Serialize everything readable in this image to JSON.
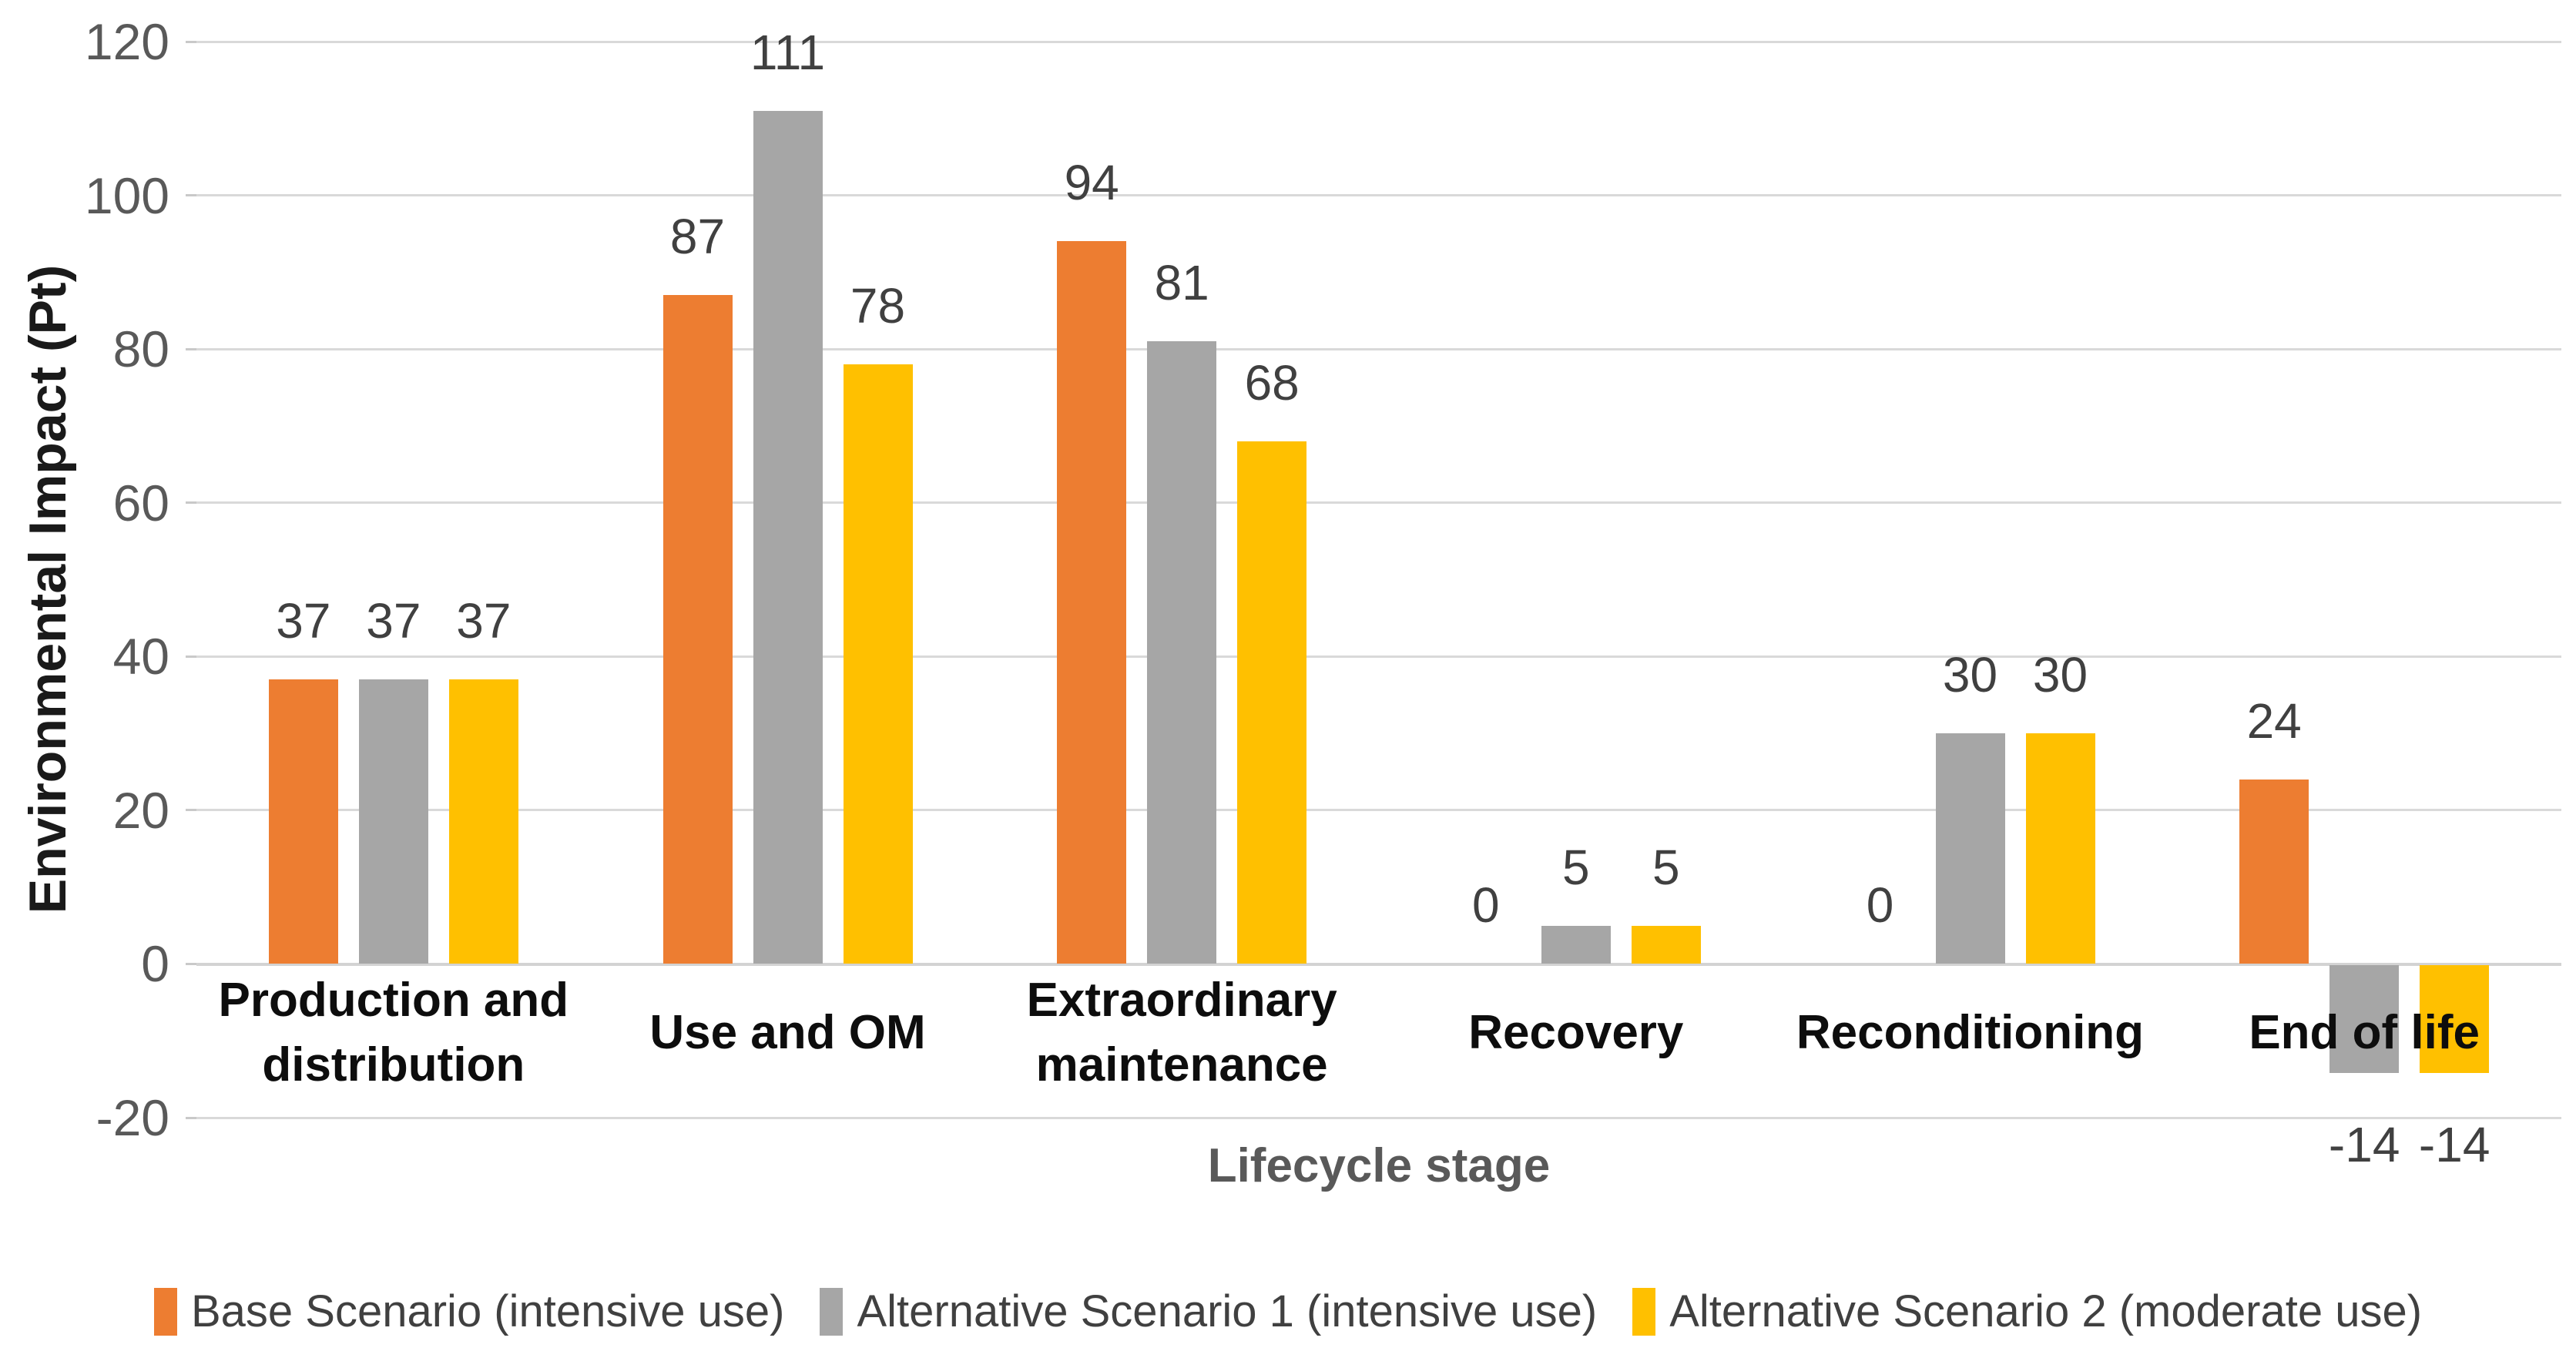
{
  "chart_data": {
    "type": "bar",
    "categories": [
      "Production and\ndistribution",
      "Use and OM",
      "Extraordinary\nmaintenance",
      "Recovery",
      "Reconditioning",
      "End of life"
    ],
    "series": [
      {
        "name": "Base Scenario (intensive use)",
        "color": "#ED7D31",
        "values": [
          37,
          87,
          94,
          0,
          0,
          24
        ]
      },
      {
        "name": "Alternative Scenario 1 (intensive use)",
        "color": "#A6A6A6",
        "values": [
          37,
          111,
          81,
          5,
          30,
          -14
        ]
      },
      {
        "name": "Alternative Scenario 2 (moderate use)",
        "color": "#FFC000",
        "values": [
          37,
          78,
          68,
          5,
          30,
          -14
        ]
      }
    ],
    "xlabel": "Lifecycle stage",
    "ylabel": "Environmental Impact (Pt)",
    "ylim": [
      -20,
      120
    ],
    "yticks": [
      120,
      100,
      80,
      60,
      40,
      20,
      0,
      -20
    ],
    "grid": true,
    "legend_position": "bottom",
    "colors": {
      "gridline": "#d9d9d9",
      "tick_label": "#595959",
      "data_label": "#404040",
      "category_label": "#0d0d0d",
      "axis_title": "#595959"
    }
  }
}
